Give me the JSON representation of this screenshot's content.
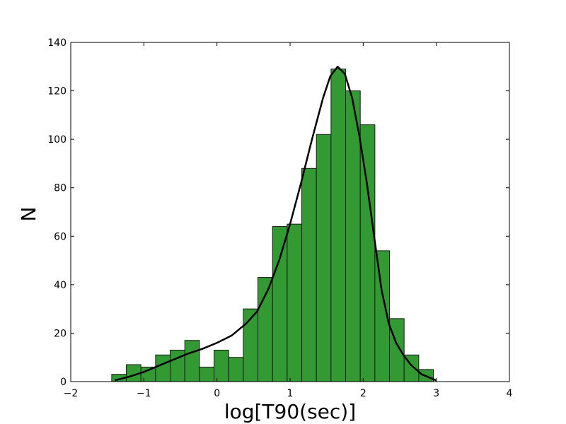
{
  "chart_data": {
    "type": "bar",
    "subtype": "histogram",
    "xlabel": "log[T90(sec)]",
    "ylabel": "N",
    "xlim": [
      -2,
      4
    ],
    "ylim": [
      0,
      140
    ],
    "xticks": [
      -2,
      -1,
      0,
      1,
      2,
      3,
      4
    ],
    "xtick_labels": [
      "−2",
      "−1",
      "0",
      "1",
      "2",
      "3",
      "4"
    ],
    "yticks": [
      0,
      20,
      40,
      60,
      80,
      100,
      120,
      140
    ],
    "ytick_labels": [
      "0",
      "20",
      "40",
      "60",
      "80",
      "100",
      "120",
      "140"
    ],
    "grid": false,
    "bar_color": "#339933",
    "bar_edge_color": "#1a1a1a",
    "bins": [
      {
        "x0": -1.44,
        "x1": -1.24,
        "count": 3
      },
      {
        "x0": -1.24,
        "x1": -1.04,
        "count": 7
      },
      {
        "x0": -1.04,
        "x1": -0.84,
        "count": 6
      },
      {
        "x0": -0.84,
        "x1": -0.64,
        "count": 11
      },
      {
        "x0": -0.64,
        "x1": -0.44,
        "count": 13
      },
      {
        "x0": -0.44,
        "x1": -0.24,
        "count": 17
      },
      {
        "x0": -0.24,
        "x1": -0.04,
        "count": 6
      },
      {
        "x0": -0.04,
        "x1": 0.16,
        "count": 13
      },
      {
        "x0": 0.16,
        "x1": 0.36,
        "count": 10
      },
      {
        "x0": 0.36,
        "x1": 0.56,
        "count": 30
      },
      {
        "x0": 0.56,
        "x1": 0.76,
        "count": 43
      },
      {
        "x0": 0.76,
        "x1": 0.96,
        "count": 64
      },
      {
        "x0": 0.96,
        "x1": 1.16,
        "count": 65
      },
      {
        "x0": 1.16,
        "x1": 1.36,
        "count": 88
      },
      {
        "x0": 1.36,
        "x1": 1.56,
        "count": 102
      },
      {
        "x0": 1.56,
        "x1": 1.76,
        "count": 129
      },
      {
        "x0": 1.76,
        "x1": 1.96,
        "count": 120
      },
      {
        "x0": 1.96,
        "x1": 2.16,
        "count": 106
      },
      {
        "x0": 2.16,
        "x1": 2.36,
        "count": 54
      },
      {
        "x0": 2.36,
        "x1": 2.56,
        "count": 26
      },
      {
        "x0": 2.56,
        "x1": 2.76,
        "count": 11
      },
      {
        "x0": 2.76,
        "x1": 2.96,
        "count": 5
      }
    ],
    "fit_curve": {
      "color": "#000000",
      "points": [
        [
          -1.4,
          0.5
        ],
        [
          -1.2,
          2
        ],
        [
          -1.0,
          4
        ],
        [
          -0.8,
          6.5
        ],
        [
          -0.6,
          9
        ],
        [
          -0.4,
          11.5
        ],
        [
          -0.2,
          13.5
        ],
        [
          0.0,
          16
        ],
        [
          0.2,
          19
        ],
        [
          0.4,
          24
        ],
        [
          0.55,
          29
        ],
        [
          0.7,
          38
        ],
        [
          0.85,
          50
        ],
        [
          1.0,
          65
        ],
        [
          1.15,
          82
        ],
        [
          1.3,
          100
        ],
        [
          1.45,
          117
        ],
        [
          1.55,
          126
        ],
        [
          1.65,
          130
        ],
        [
          1.75,
          127
        ],
        [
          1.85,
          117
        ],
        [
          1.95,
          101
        ],
        [
          2.05,
          82
        ],
        [
          2.15,
          60
        ],
        [
          2.25,
          38
        ],
        [
          2.35,
          24
        ],
        [
          2.45,
          16
        ],
        [
          2.55,
          11
        ],
        [
          2.65,
          7
        ],
        [
          2.8,
          3
        ],
        [
          3.0,
          0.5
        ]
      ]
    }
  }
}
